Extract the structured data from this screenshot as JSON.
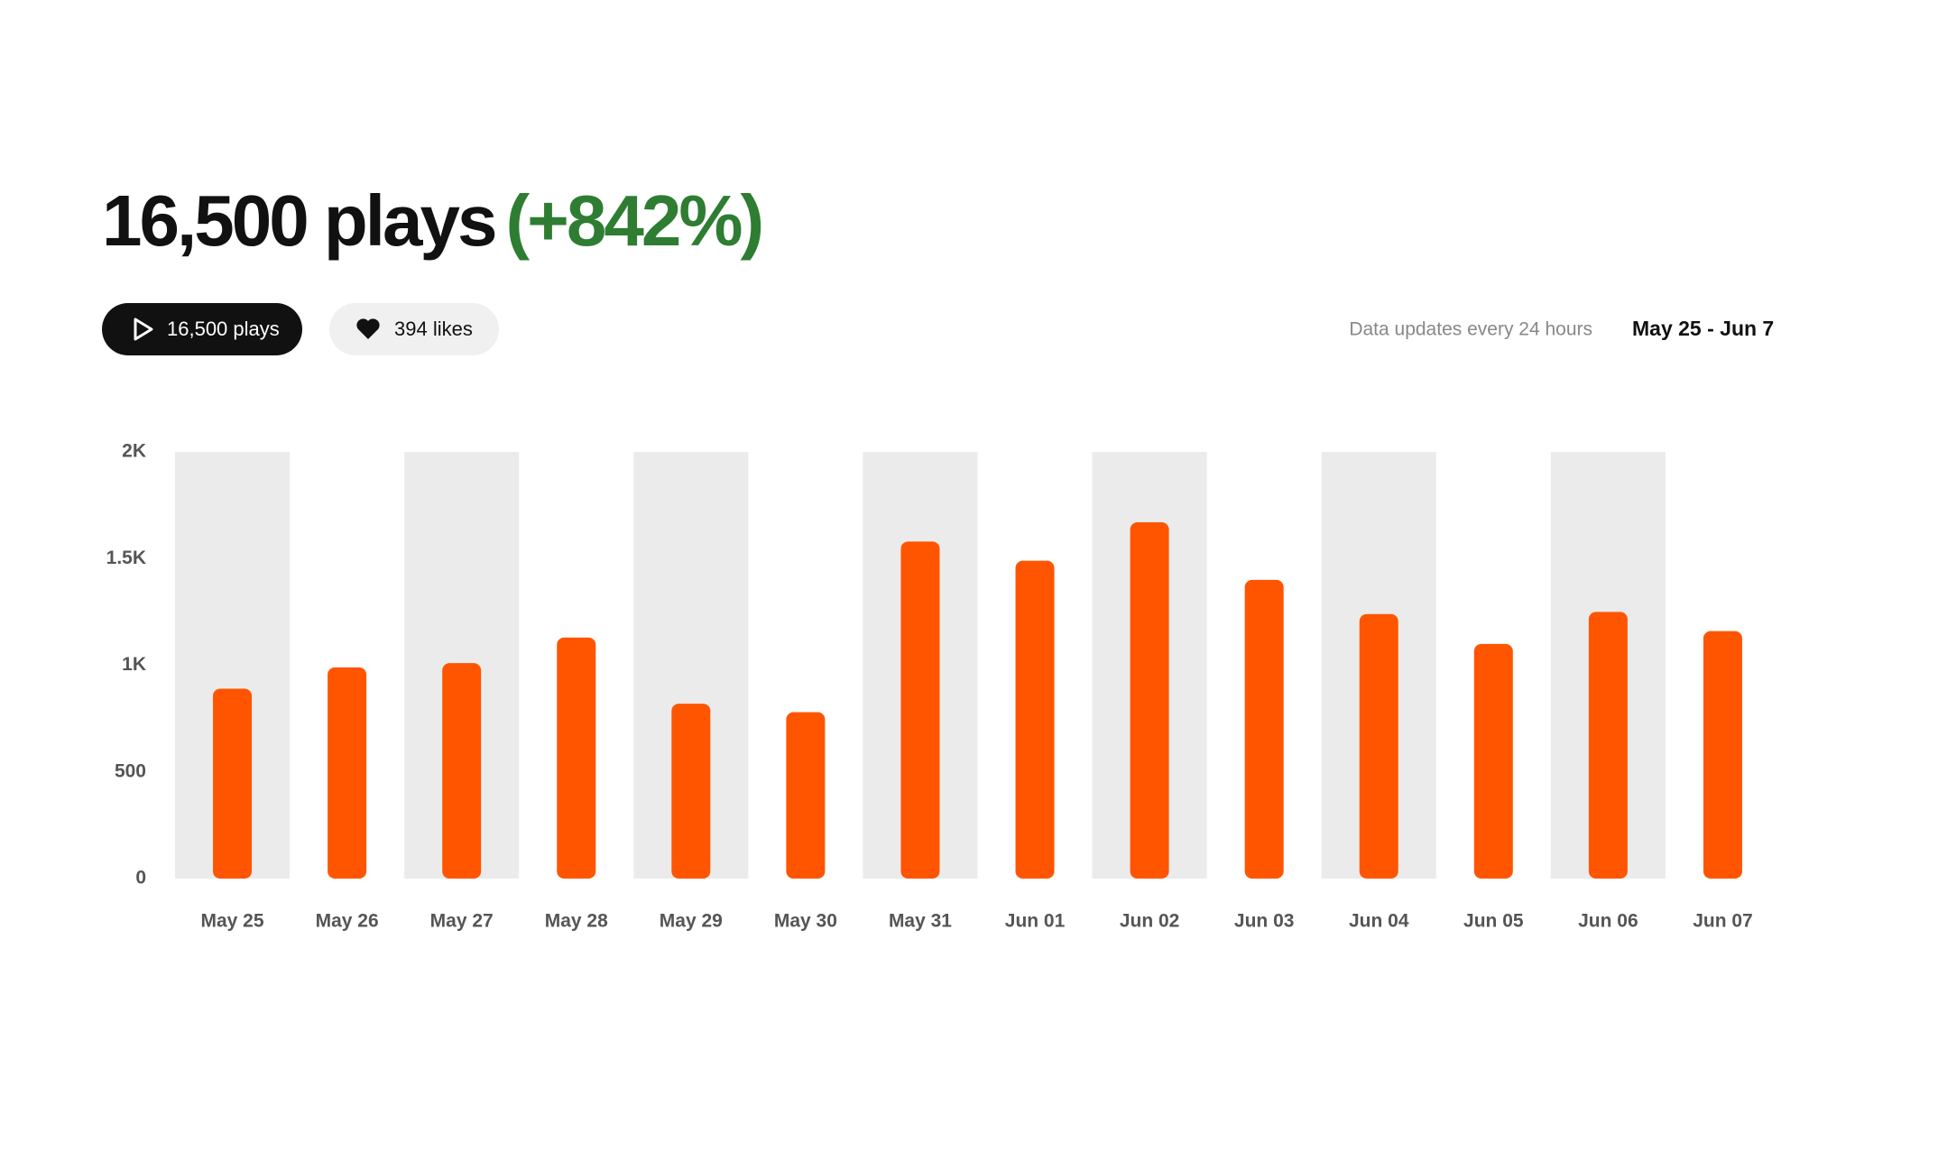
{
  "header": {
    "title": "16,500 plays",
    "change": "(+842%)"
  },
  "tabs": [
    {
      "label": "16,500 plays"
    },
    {
      "label": "394 likes"
    }
  ],
  "update_note": "Data updates every 24 hours",
  "date_range": "May 25 - Jun 7",
  "chart_data": {
    "type": "bar",
    "categories": [
      "May 25",
      "May 26",
      "May 27",
      "May 28",
      "May 29",
      "May 30",
      "May 31",
      "Jun 01",
      "Jun 02",
      "Jun 03",
      "Jun 04",
      "Jun 05",
      "Jun 06",
      "Jun 07"
    ],
    "values": [
      890,
      990,
      1010,
      1130,
      820,
      780,
      1580,
      1490,
      1670,
      1400,
      1240,
      1100,
      1250,
      1160
    ],
    "color": "#ff5500",
    "band_color": "#ebebeb",
    "ylim": [
      0,
      2000
    ],
    "yticks": [
      0,
      500,
      {
        "value": 1000,
        "label": "1K"
      },
      {
        "value": 1500,
        "label": "1.5K"
      },
      {
        "value": 2000,
        "label": "2K"
      }
    ],
    "grid": false
  }
}
